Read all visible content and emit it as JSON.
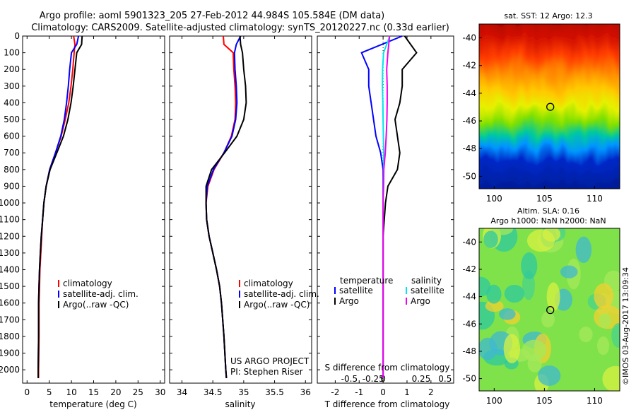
{
  "title": {
    "line1": "Argo profile: aoml 5901323_205 27-Feb-2012 44.984S 105.584E (DM data)",
    "line2": "Climatology: CARS2009. Satellite-adjusted climatology: synTS_20120227.nc (0.33d earlier)"
  },
  "credit": "©IMOS 03-Aug-2017 13:09:34",
  "project": {
    "line1": "US ARGO PROJECT",
    "line2": "PI: Stephen Riser"
  },
  "colors": {
    "climatology": "#ff0000",
    "satellite": "#0000ff",
    "argo": "#000000",
    "sat_salinity": "#00e5ee",
    "argo_salinity": "#ee00ee"
  },
  "chart_data": [
    {
      "id": "temperature",
      "type": "line",
      "xlabel": "temperature (deg C)",
      "ylabel": "",
      "xlim": [
        -1,
        31
      ],
      "ylim": [
        2080,
        0
      ],
      "xticks": [
        0,
        5,
        10,
        15,
        20,
        25,
        30
      ],
      "yticks": [
        0,
        100,
        200,
        300,
        400,
        500,
        600,
        700,
        800,
        900,
        1000,
        1100,
        1200,
        1300,
        1400,
        1500,
        1600,
        1700,
        1800,
        1900,
        2000
      ],
      "legend": [
        "climatology",
        "satellite-adj. clim.",
        "Argo(..raw -QC)"
      ],
      "series": [
        {
          "name": "climatology",
          "color": "#ff0000",
          "x": [
            10.5,
            10.8,
            10.6,
            10.3,
            9.9,
            9.4,
            8.6,
            7.7,
            6.4,
            5.1,
            4.3,
            3.8,
            3.5,
            3.3,
            3.1,
            2.9,
            2.8,
            2.7,
            2.7,
            2.6,
            2.6
          ],
          "y": [
            0,
            50,
            100,
            200,
            300,
            400,
            500,
            600,
            700,
            800,
            900,
            1000,
            1100,
            1200,
            1300,
            1400,
            1500,
            1600,
            1800,
            2000,
            2050
          ]
        },
        {
          "name": "satellite-adj. clim.",
          "color": "#0000ff",
          "x": [
            11.6,
            11.2,
            10.0,
            9.6,
            9.3,
            8.9,
            8.4,
            7.6,
            6.4,
            5.1,
            4.3,
            3.8,
            3.5,
            3.2,
            3.0,
            2.8,
            2.7,
            2.6,
            2.6,
            2.5,
            2.5
          ],
          "y": [
            0,
            50,
            100,
            200,
            300,
            400,
            500,
            600,
            700,
            800,
            900,
            1000,
            1100,
            1200,
            1300,
            1400,
            1500,
            1600,
            1800,
            2000,
            2050
          ]
        },
        {
          "name": "Argo(..raw -QC)",
          "color": "#000000",
          "x": [
            12.4,
            12.3,
            11.2,
            10.8,
            10.4,
            9.9,
            9.2,
            8.2,
            6.7,
            5.2,
            4.3,
            3.8,
            3.5,
            3.2,
            3.0,
            2.8,
            2.7,
            2.6,
            2.6,
            2.5,
            2.5
          ],
          "y": [
            0,
            50,
            100,
            200,
            300,
            400,
            500,
            600,
            700,
            800,
            900,
            1000,
            1100,
            1200,
            1300,
            1400,
            1500,
            1600,
            1800,
            2000,
            2050
          ]
        }
      ]
    },
    {
      "id": "salinity",
      "type": "line",
      "xlabel": "salinity",
      "xlim": [
        33.8,
        36.1
      ],
      "ylim": [
        2080,
        0
      ],
      "xticks": [
        34,
        34.5,
        35,
        35.5,
        36
      ],
      "legend": [
        "climatology",
        "satellite-adj. clim.",
        "Argo(..raw -QC)"
      ],
      "series": [
        {
          "name": "climatology",
          "color": "#ff0000",
          "x": [
            34.67,
            34.68,
            34.83,
            34.84,
            34.86,
            34.87,
            34.86,
            34.8,
            34.68,
            34.52,
            34.42,
            34.39,
            34.4,
            34.44,
            34.5,
            34.56,
            34.61,
            34.64,
            34.68,
            34.71,
            34.72
          ],
          "y": [
            0,
            50,
            100,
            200,
            300,
            400,
            500,
            600,
            700,
            800,
            900,
            1000,
            1100,
            1200,
            1300,
            1400,
            1500,
            1600,
            1800,
            2000,
            2050
          ]
        },
        {
          "name": "satellite-adj. clim.",
          "color": "#0000ff",
          "x": [
            34.95,
            34.88,
            34.85,
            34.86,
            34.88,
            34.89,
            34.87,
            34.81,
            34.68,
            34.51,
            34.41,
            34.39,
            34.4,
            34.44,
            34.5,
            34.56,
            34.61,
            34.64,
            34.68,
            34.71,
            34.72
          ],
          "y": [
            0,
            50,
            100,
            200,
            300,
            400,
            500,
            600,
            700,
            800,
            900,
            1000,
            1100,
            1200,
            1300,
            1400,
            1500,
            1600,
            1800,
            2000,
            2050
          ]
        },
        {
          "name": "Argo(..raw -QC)",
          "color": "#000000",
          "x": [
            34.94,
            34.95,
            34.98,
            35.0,
            35.03,
            35.04,
            35.0,
            34.89,
            34.69,
            34.48,
            34.39,
            34.39,
            34.4,
            34.44,
            34.5,
            34.56,
            34.61,
            34.64,
            34.68,
            34.71,
            34.72
          ],
          "y": [
            0,
            50,
            100,
            200,
            300,
            400,
            500,
            600,
            700,
            800,
            900,
            1000,
            1100,
            1200,
            1300,
            1400,
            1500,
            1600,
            1800,
            2000,
            2050
          ]
        }
      ],
      "annotation": [
        "US ARGO PROJECT",
        "PI: Stephen Riser"
      ]
    },
    {
      "id": "difference",
      "type": "line",
      "xlabel": "T difference from climatology",
      "xlabel_top": "S difference from climatology",
      "xlim": [
        -2.75,
        2.95
      ],
      "ylim": [
        2080,
        0
      ],
      "xticks": [
        -2,
        -1,
        0,
        1,
        2
      ],
      "xticks_s": [
        -0.5,
        -0.25,
        0,
        0.25,
        0.5
      ],
      "legend_headers": [
        "temperature",
        "salinity"
      ],
      "legend": [
        "satellite",
        "Argo",
        "satellite",
        "Argo"
      ],
      "series": [
        {
          "name": "satellite",
          "quantity": "temperature",
          "color": "#0000ff",
          "x": [
            0.8,
            -0.9,
            -0.6,
            -0.6,
            -0.5,
            -0.4,
            -0.3,
            -0.1,
            0.0,
            0.0,
            0.0,
            0.0,
            0.0,
            0.0,
            0.0,
            0.0,
            0.0,
            0.0
          ],
          "y": [
            0,
            100,
            200,
            300,
            400,
            500,
            600,
            700,
            800,
            900,
            1000,
            1200,
            1400,
            1600,
            1800,
            1900,
            2000,
            2050
          ]
        },
        {
          "name": "Argo",
          "quantity": "temperature",
          "color": "#000000",
          "x": [
            0.9,
            1.4,
            0.8,
            0.8,
            0.7,
            0.5,
            0.6,
            0.7,
            0.6,
            0.2,
            0.1,
            0.0,
            0.0,
            0.0,
            0.0,
            0.0,
            0.0,
            0.0
          ],
          "y": [
            0,
            100,
            200,
            300,
            400,
            500,
            600,
            700,
            800,
            900,
            1000,
            1200,
            1400,
            1600,
            1800,
            1900,
            2000,
            2050
          ]
        },
        {
          "name": "satellite",
          "quantity": "salinity",
          "color": "#00e5ee",
          "x": [
            0.28,
            0.02,
            -0.02,
            -0.03,
            -0.01,
            0.0,
            0.01,
            0.03,
            0.02,
            0.01,
            0.0,
            0.0,
            0.0,
            0.0,
            0.0,
            0.0,
            0.0,
            0.0
          ],
          "y": [
            0,
            100,
            200,
            300,
            400,
            500,
            600,
            700,
            800,
            900,
            1000,
            1200,
            1400,
            1600,
            1800,
            1900,
            2000,
            2050
          ]
        },
        {
          "name": "Argo",
          "quantity": "salinity",
          "color": "#ee00ee",
          "x": [
            0.27,
            0.2,
            0.15,
            0.17,
            0.17,
            0.16,
            0.13,
            0.09,
            0.03,
            0.02,
            0.0,
            0.0,
            0.0,
            0.0,
            0.0,
            0.0,
            0.0,
            0.0
          ],
          "y": [
            0,
            100,
            200,
            300,
            400,
            500,
            600,
            700,
            800,
            900,
            1000,
            1200,
            1400,
            1600,
            1800,
            1900,
            2000,
            2050
          ]
        }
      ]
    },
    {
      "id": "sst-map",
      "type": "heatmap",
      "title": "sat. SST: 12 Argo: 12.3",
      "xlim": [
        98.5,
        112.5
      ],
      "ylim": [
        -50.9,
        -39
      ],
      "xticks": [
        100,
        105,
        110
      ],
      "yticks": [
        -40,
        -42,
        -44,
        -46,
        -48,
        -50
      ],
      "marker": {
        "lon": 105.584,
        "lat": -44.984
      }
    },
    {
      "id": "sla-map",
      "type": "heatmap",
      "title_line1": "Altim. SLA: 0.16",
      "title_line2": "Argo h1000: NaN h2000: NaN",
      "xlim": [
        98.5,
        112.5
      ],
      "ylim": [
        -50.9,
        -39
      ],
      "xticks": [
        100,
        105,
        110
      ],
      "yticks": [
        -40,
        -42,
        -44,
        -46,
        -48,
        -50
      ],
      "marker": {
        "lon": 105.584,
        "lat": -44.984
      }
    }
  ]
}
